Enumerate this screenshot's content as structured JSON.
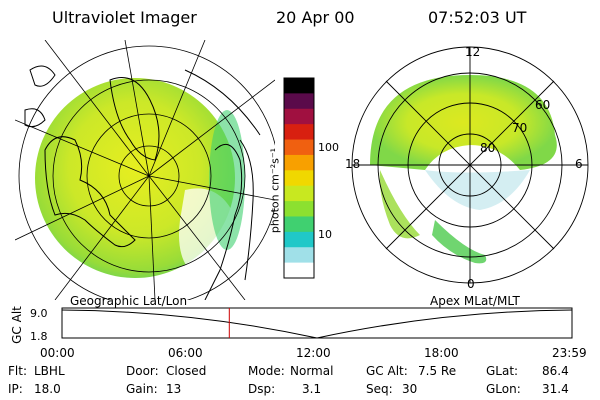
{
  "header": {
    "instrument": "Ultraviolet Imager",
    "date": "20 Apr 00",
    "time": "07:52:03 UT"
  },
  "colorbar": {
    "unit_label": "photon cm⁻²s⁻¹",
    "ticks": [
      "100",
      "10"
    ],
    "colors": [
      "#000000",
      "#5a0a4a",
      "#a01040",
      "#d82010",
      "#f06010",
      "#f8a000",
      "#f0d800",
      "#c8e820",
      "#8ce030",
      "#40d070",
      "#20c8c8",
      "#a0e0e8",
      "#ffffff"
    ]
  },
  "geo_map": {
    "projection_label": "Geographic Lat/Lon"
  },
  "mag_map": {
    "projection_label": "Apex MLat/MLT",
    "mlt_labels": {
      "top": "12",
      "bottom": "0",
      "left": "18",
      "right": "6"
    },
    "lat_labels": [
      "60",
      "70",
      "80"
    ]
  },
  "timeline": {
    "axis_label": "GC Alt",
    "y_ticks": [
      "9.0",
      "1.8"
    ],
    "x_ticks": [
      "00:00",
      "06:00",
      "12:00",
      "18:00",
      "23:59"
    ],
    "marker_time": "07:52",
    "marker_color": "#cc0000"
  },
  "info": {
    "flt_label": "Flt:",
    "flt_value": "LBHL",
    "ip_label": "IP:",
    "ip_value": "18.0",
    "door_label": "Door:",
    "door_value": "Closed",
    "gain_label": "Gain:",
    "gain_value": "13",
    "mode_label": "Mode:",
    "mode_value": "Normal",
    "dsp_label": "Dsp:",
    "dsp_value": "3.1",
    "gcalt_label": "GC Alt:",
    "gcalt_value": "7.5 Re",
    "seq_label": "Seq:",
    "seq_value": "30",
    "glat_label": "GLat:",
    "glat_value": "86.4",
    "glon_label": "GLon:",
    "glon_value": "31.4"
  }
}
